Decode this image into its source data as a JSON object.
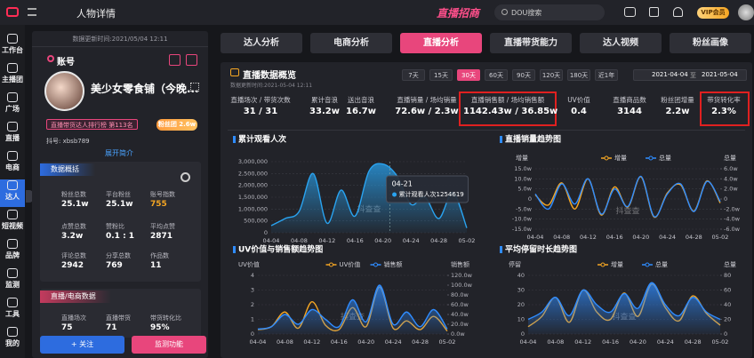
{
  "topbar": {
    "title": "人物详情",
    "brand": "直播招商",
    "search": "DOU搜索",
    "vip": "VIP会员"
  },
  "sidebar": [
    "工作台",
    "主播团",
    "广场",
    "直播",
    "电商",
    "达人",
    "短视频",
    "品牌",
    "监测",
    "工具",
    "我的"
  ],
  "profile": {
    "updated": "数据更新时间:2021/05/04 12:11",
    "section": "账号",
    "name": "美少女零食铺（今晚...",
    "rank": "直播带货达人排行榜 第113名",
    "fans_badge": "粉丝团 2.6w",
    "account": "抖号: xbsb789",
    "expand": "展开简介",
    "summary_title": "数据概括",
    "summary": [
      {
        "label": "粉丝总数",
        "value": "25.1w"
      },
      {
        "label": "平台粉丝",
        "value": "25.1w"
      },
      {
        "label": "账号指数",
        "value": "755"
      },
      {
        "label": "点赞总数",
        "value": "3.2w"
      },
      {
        "label": "赞粉比",
        "value": "0.1 : 1"
      },
      {
        "label": "平均点赞",
        "value": "2871"
      },
      {
        "label": "评论总数",
        "value": "2942"
      },
      {
        "label": "分享总数",
        "value": "769"
      },
      {
        "label": "作品数",
        "value": "11"
      }
    ],
    "live_title": "直播/电商数据",
    "live": [
      {
        "label": "直播场次",
        "value": "75"
      },
      {
        "label": "直播带货",
        "value": "71"
      },
      {
        "label": "带货转化比",
        "value": "95%"
      }
    ],
    "follow": "+ 关注",
    "monitor": "监测功能"
  },
  "tabs": [
    "达人分析",
    "电商分析",
    "直播分析",
    "直播带货能力",
    "达人视频",
    "粉丝画像"
  ],
  "overview": {
    "title": "直播数据概览",
    "updated": "数据更新时间:2021-05-04 12:11",
    "periods": [
      "7天",
      "15天",
      "30天",
      "60天",
      "90天",
      "120天",
      "180天",
      "近1年"
    ],
    "date_from": "2021-04-04",
    "date_sep": "至",
    "date_to": "2021-05-04",
    "stats": [
      {
        "label": "直播场次 / 带货次数",
        "value": "31 / 31"
      },
      {
        "label": "累计音浪",
        "value": "33.2w"
      },
      {
        "label": "送出音浪",
        "value": "16.7w"
      },
      {
        "label": "直播销量 / 场均销量",
        "value": "72.6w / 2.3w"
      },
      {
        "label": "直播销售额 / 场均销售额",
        "value": "1142.43w / 36.85w"
      },
      {
        "label": "UV价值",
        "value": "0.4"
      },
      {
        "label": "直播商品数",
        "value": "3144"
      },
      {
        "label": "粉丝团增量",
        "value": "2.2w"
      },
      {
        "label": "带货转化率",
        "value": "2.3%"
      }
    ]
  },
  "chart_data": [
    {
      "type": "line",
      "title": "累计观看人次",
      "area": true,
      "grid": true,
      "watermark": "抖查查",
      "ylim": [
        0,
        3000000
      ],
      "yticks": [
        0,
        {
          "value": 500000,
          "label": "500,000"
        },
        {
          "value": 1000000,
          "label": "1,000,000"
        },
        {
          "value": 1500000,
          "label": "1,500,000"
        },
        {
          "value": 2000000,
          "label": "2,000,000"
        },
        {
          "value": 2500000,
          "label": "2,500,000"
        },
        {
          "value": 3000000,
          "label": "3,000,000"
        }
      ],
      "categories": [
        "04-04",
        null,
        "04-08",
        null,
        "04-12",
        null,
        "04-16",
        null,
        "04-20",
        null,
        "04-24",
        null,
        "04-28",
        null,
        "05-02"
      ],
      "series": [
        {
          "color": "#29a3f0",
          "values": [
            300000,
            600000,
            900000,
            2500000,
            400000,
            1800000,
            700000,
            2600000,
            2900000,
            2400000,
            1200000,
            1500000,
            600000,
            1700000,
            200000
          ]
        }
      ],
      "tooltip": {
        "title": "04-21",
        "text": "累计观看人次1254619"
      }
    },
    {
      "type": "line",
      "title": "直播销量趋势图",
      "grid": true,
      "watermark": "抖查查",
      "y_label": "增量",
      "y2_label": "总量",
      "ylim": [
        -150000,
        150000
      ],
      "yticks": [
        {
          "value": -150000,
          "label": "-15.0w"
        },
        {
          "value": -100000,
          "label": "-10.0w"
        },
        {
          "value": -50000,
          "label": "-5.0w"
        },
        0,
        {
          "value": 50000,
          "label": "5.0w"
        },
        {
          "value": 100000,
          "label": "10.0w"
        },
        {
          "value": 150000,
          "label": "15.0w"
        }
      ],
      "y2lim": [
        -60000,
        60000
      ],
      "y2ticks": [
        {
          "value": -60000,
          "label": "-6.0w"
        },
        {
          "value": -40000,
          "label": "-4.0w"
        },
        {
          "value": -20000,
          "label": "-2.0w"
        },
        0,
        {
          "value": 20000,
          "label": "2.0w"
        },
        {
          "value": 40000,
          "label": "4.0w"
        },
        {
          "value": 60000,
          "label": "6.0w"
        }
      ],
      "categories": [
        "04-04",
        null,
        "04-08",
        null,
        "04-12",
        null,
        "04-16",
        null,
        "04-20",
        null,
        "04-24",
        null,
        "04-28",
        null,
        "05-02"
      ],
      "series": [
        {
          "name": "增量",
          "color": "#f5a623",
          "values": [
            20000,
            -30000,
            80000,
            -50000,
            100000,
            -80000,
            60000,
            -40000,
            110000,
            -90000,
            30000,
            70000,
            -60000,
            90000,
            -20000
          ]
        },
        {
          "name": "总量",
          "color": "#2f8cff",
          "axis": "y2",
          "values": [
            10000,
            -20000,
            30000,
            -10000,
            40000,
            -30000,
            20000,
            -15000,
            45000,
            -35000,
            10000,
            30000,
            -25000,
            35000,
            -5000
          ]
        }
      ]
    },
    {
      "type": "line",
      "title": "UV价值与销售额趋势图",
      "grid": true,
      "watermark": "抖查查",
      "y_label": "UV价值",
      "y2_label": "销售额",
      "ylim": [
        0,
        4
      ],
      "yticks": [
        0,
        1,
        2,
        3,
        4
      ],
      "y2lim": [
        0,
        1200000
      ],
      "y2ticks": [
        {
          "value": 0,
          "label": "0.0w"
        },
        {
          "value": 200000,
          "label": "20.0w"
        },
        {
          "value": 400000,
          "label": "40.0w"
        },
        {
          "value": 600000,
          "label": "60.0w"
        },
        {
          "value": 800000,
          "label": "80.0w"
        },
        {
          "value": 1000000,
          "label": "100.0w"
        },
        {
          "value": 1200000,
          "label": "120.0w"
        }
      ],
      "categories": [
        "04-04",
        null,
        "04-08",
        null,
        "04-12",
        null,
        "04-16",
        null,
        "04-20",
        null,
        "04-24",
        null,
        "04-28",
        null,
        "05-02"
      ],
      "series": [
        {
          "name": "UV价值",
          "color": "#f5a623",
          "values": [
            0.3,
            0.5,
            1.5,
            0.4,
            2.2,
            0.6,
            0.3,
            1.8,
            0.5,
            3.2,
            0.4,
            0.9,
            0.3,
            1.2,
            0.2
          ]
        },
        {
          "name": "销售额",
          "color": "#2f8cff",
          "axis": "y2",
          "area": true,
          "values": [
            100000,
            150000,
            400000,
            200000,
            500000,
            300000,
            150000,
            700000,
            250000,
            1000000,
            200000,
            450000,
            150000,
            500000,
            100000
          ]
        }
      ]
    },
    {
      "type": "line",
      "title": "平均停留时长趋势图",
      "grid": true,
      "watermark": "抖查查",
      "y_label": "停留",
      "y2_label": "总量",
      "ylim": [
        0,
        40
      ],
      "yticks": [
        0,
        10,
        20,
        30,
        40
      ],
      "y2lim": [
        0,
        80
      ],
      "y2ticks": [
        0,
        20,
        40,
        60,
        80
      ],
      "categories": [
        "04-04",
        null,
        "04-08",
        null,
        "04-12",
        null,
        "04-16",
        null,
        "04-20",
        null,
        "04-24",
        null,
        "04-28",
        null,
        "05-02"
      ],
      "series": [
        {
          "name": "增量",
          "color": "#f5a623",
          "values": [
            5,
            12,
            25,
            8,
            30,
            15,
            10,
            28,
            12,
            34,
            18,
            9,
            26,
            14,
            6
          ]
        },
        {
          "name": "总量",
          "color": "#2f8cff",
          "axis": "y2",
          "area": true,
          "values": [
            20,
            30,
            50,
            25,
            60,
            40,
            30,
            55,
            35,
            70,
            40,
            25,
            50,
            30,
            20
          ]
        }
      ]
    }
  ]
}
